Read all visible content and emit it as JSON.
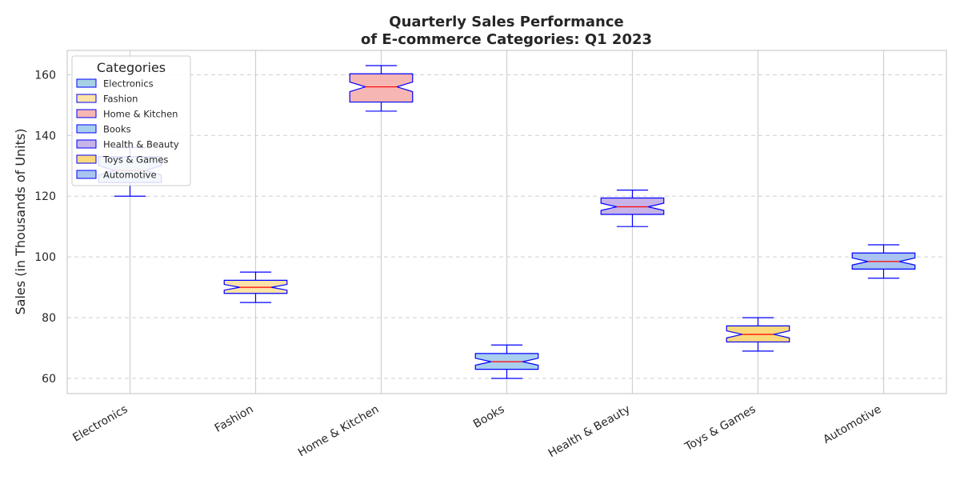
{
  "chart_data": {
    "type": "box",
    "title": [
      "Quarterly Sales Performance",
      "of E-commerce Categories: Q1 2023"
    ],
    "xlabel": "",
    "ylabel": "Sales (in Thousands of Units)",
    "ylim": [
      55,
      168
    ],
    "yticks": [
      60,
      80,
      100,
      120,
      140,
      160
    ],
    "grid": true,
    "notched": true,
    "legend": {
      "title": "Categories",
      "placement": "top-left"
    },
    "categories": [
      "Electronics",
      "Fashion",
      "Home & Kitchen",
      "Books",
      "Health & Beauty",
      "Toys & Games",
      "Automotive"
    ],
    "series": [
      {
        "name": "Electronics",
        "min": 120,
        "q1": 124.5,
        "median": 128.5,
        "q3": 133,
        "max": 136,
        "color": "#a6d0e4"
      },
      {
        "name": "Fashion",
        "min": 85,
        "q1": 88,
        "median": 90,
        "q3": 92.3,
        "max": 95,
        "color": "#fde3a7"
      },
      {
        "name": "Home & Kitchen",
        "min": 148,
        "q1": 151,
        "median": 156,
        "q3": 160.3,
        "max": 163,
        "color": "#f6b6b3"
      },
      {
        "name": "Books",
        "min": 60,
        "q1": 63,
        "median": 65.5,
        "q3": 68.2,
        "max": 71,
        "color": "#a9cfef"
      },
      {
        "name": "Health & Beauty",
        "min": 110,
        "q1": 114,
        "median": 116.5,
        "q3": 119.4,
        "max": 122,
        "color": "#c7b3e8"
      },
      {
        "name": "Toys & Games",
        "min": 69,
        "q1": 72,
        "median": 74.5,
        "q3": 77.3,
        "max": 80,
        "color": "#fcd97d"
      },
      {
        "name": "Automotive",
        "min": 93,
        "q1": 96,
        "median": 98.5,
        "q3": 101.3,
        "max": 104,
        "color": "#a9c4ef"
      }
    ],
    "box_edge_color": "#0000ff",
    "median_color": "#ff0000"
  }
}
